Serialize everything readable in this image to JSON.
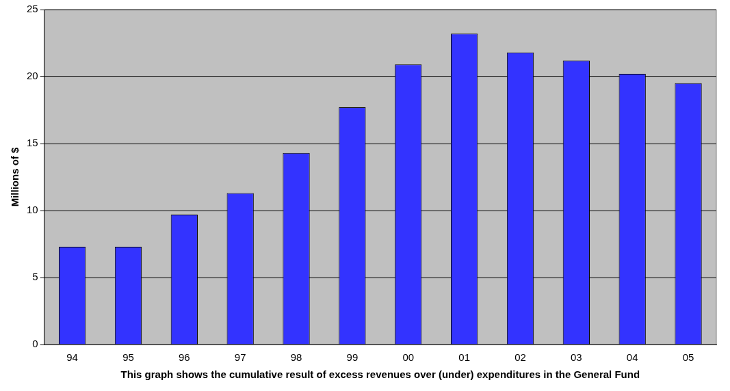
{
  "chart_data": {
    "type": "bar",
    "categories": [
      "94",
      "95",
      "96",
      "97",
      "98",
      "99",
      "00",
      "01",
      "02",
      "03",
      "04",
      "05"
    ],
    "values": [
      7.3,
      7.3,
      9.7,
      11.3,
      14.3,
      17.7,
      20.9,
      23.2,
      21.8,
      21.2,
      20.2,
      19.5
    ],
    "color": "#3333ff",
    "ylabel": "Millions of $",
    "xlabel": "This graph shows the cumulative result of excess revenues over (under) expenditures in the General Fund",
    "ylim": [
      0,
      25
    ],
    "yticks": [
      0,
      5,
      10,
      15,
      20,
      25
    ],
    "grid": "y",
    "legend": false
  }
}
